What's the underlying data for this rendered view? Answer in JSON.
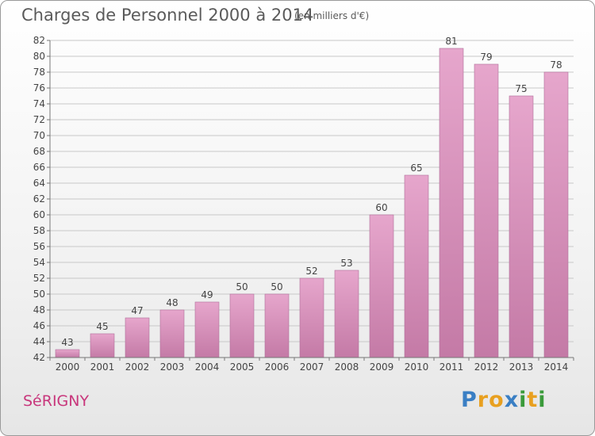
{
  "title": "Charges de Personnel 2000 à 2014",
  "subtitle": "(en milliers d'€)",
  "commune": "SéRIGNY",
  "logo": {
    "letters": [
      "P",
      "r",
      "o",
      "x",
      "i",
      "t",
      "i"
    ],
    "colors": [
      "#3a7fc4",
      "#e8a020",
      "#e8a020",
      "#3a7fc4",
      "#3a9a3a",
      "#e8a020",
      "#3a9a3a"
    ]
  },
  "colors": {
    "bar_light": "#e6a6cc",
    "bar_dark": "#c47aa6",
    "grid": "#c8c8c8",
    "axis": "#777777",
    "text": "#444444"
  },
  "chart_data": {
    "type": "bar",
    "categories": [
      "2000",
      "2001",
      "2002",
      "2003",
      "2004",
      "2005",
      "2006",
      "2007",
      "2008",
      "2009",
      "2010",
      "2011",
      "2012",
      "2013",
      "2014"
    ],
    "values": [
      43,
      45,
      47,
      48,
      49,
      50,
      50,
      52,
      53,
      60,
      65,
      81,
      79,
      75,
      78
    ],
    "ylim": [
      42,
      82
    ],
    "yticks": [
      42,
      44,
      46,
      48,
      50,
      52,
      54,
      56,
      58,
      60,
      62,
      64,
      66,
      68,
      70,
      72,
      74,
      76,
      78,
      80,
      82
    ],
    "grid": true,
    "data_labels": true
  }
}
